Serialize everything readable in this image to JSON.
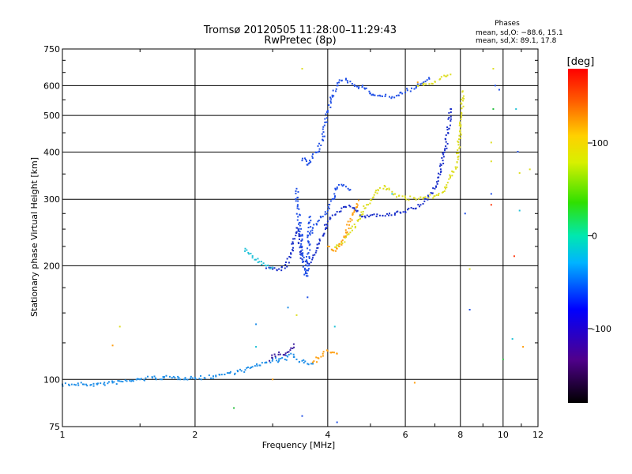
{
  "chart_data": {
    "type": "scatter",
    "title": "Tromsø 20120505 11:28:00–11:29:43",
    "subtitle": "RwPretec (8p)",
    "xlabel": "Frequency [MHz]",
    "ylabel": "Stationary phase Virtual Height [km]",
    "x_scale": "log",
    "y_scale": "log",
    "xlim": [
      1,
      12
    ],
    "ylim": [
      75,
      750
    ],
    "grid": true,
    "x_ticks": [
      1,
      2,
      4,
      6,
      8,
      10,
      12
    ],
    "x_tick_labels": [
      "1",
      "2",
      "4",
      "6",
      "8",
      "10",
      "12"
    ],
    "y_ticks": [
      75,
      100,
      200,
      300,
      400,
      500,
      600,
      750
    ],
    "y_tick_labels": [
      "75",
      "100",
      "200",
      "300",
      "400",
      "500",
      "600",
      "750"
    ],
    "stats": {
      "heading": "Phases",
      "line_o": "mean, sd,O: −88.6, 15.1",
      "line_x": "mean, sd,X:  89.1, 17.8"
    },
    "colorbar": {
      "label": "[deg]",
      "range": [
        -180,
        180
      ],
      "ticks": [
        100,
        0,
        -100
      ],
      "tick_labels": [
        "100",
        "0",
        "-100"
      ]
    },
    "colors": {
      "blue": "#1f4fe6",
      "deep_blue": "#1a2fc9",
      "light_blue": "#1e8ee8",
      "cyan": "#22c2d8",
      "yellow": "#dede22",
      "orange": "#ff9f10",
      "purple": "#3c1fa0",
      "green": "#28c040",
      "red": "#ff3a10"
    },
    "traces": [
      {
        "name": "low-band",
        "color": "light_blue",
        "x": [
          1.0,
          1.05,
          1.12,
          1.2,
          1.3,
          1.4,
          1.5,
          1.6,
          1.7,
          1.8,
          1.9,
          2.0,
          2.1,
          2.2,
          2.3,
          2.4,
          2.5,
          2.6,
          2.7,
          2.8,
          2.9,
          3.0,
          3.1,
          3.2,
          3.3,
          3.4,
          3.5,
          3.6,
          3.7
        ],
        "y": [
          97,
          97,
          97,
          97,
          98,
          99,
          100,
          101,
          101,
          101,
          101,
          101,
          101,
          102,
          103,
          104,
          105,
          106,
          108,
          109,
          111,
          113,
          112,
          113,
          117,
          113,
          112,
          110,
          110
        ]
      },
      {
        "name": "low-band-purple",
        "color": "purple",
        "x": [
          2.95,
          3.1,
          3.2,
          3.3,
          3.35
        ],
        "y": [
          112,
          118,
          116,
          121,
          124
        ]
      },
      {
        "name": "E-trace-orange",
        "color": "orange",
        "x": [
          3.7,
          3.8,
          3.9,
          4.0,
          4.1,
          4.2
        ],
        "y": [
          111,
          114,
          117,
          119,
          118,
          117
        ]
      },
      {
        "name": "F-mid-deep",
        "color": "deep_blue",
        "x": [
          2.9,
          3.0,
          3.1,
          3.2,
          3.3,
          3.4,
          3.45,
          3.5,
          3.6,
          3.7,
          3.8,
          3.9,
          4.0,
          4.1,
          4.2,
          4.3,
          4.4,
          4.5,
          4.6,
          4.8,
          5.0,
          5.5,
          6.0,
          6.5,
          7.0,
          7.3,
          7.5,
          7.6
        ],
        "y": [
          197,
          196,
          196,
          197,
          215,
          252,
          235,
          208,
          203,
          210,
          223,
          240,
          262,
          272,
          278,
          284,
          286,
          287,
          283,
          270,
          272,
          272,
          278,
          290,
          320,
          380,
          450,
          520
        ]
      },
      {
        "name": "F-mid-blue",
        "color": "blue",
        "x": [
          3.6,
          3.7,
          3.8,
          3.9,
          4.0,
          4.1,
          4.2,
          4.3,
          4.4,
          4.5
        ],
        "y": [
          238,
          252,
          262,
          270,
          280,
          300,
          320,
          328,
          324,
          318
        ]
      },
      {
        "name": "F-upper",
        "color": "blue",
        "x": [
          3.5,
          3.55,
          3.6,
          3.7,
          3.8,
          3.9,
          4.0,
          4.1,
          4.2,
          4.3,
          4.4,
          4.5,
          4.6,
          4.7,
          4.8,
          5.0,
          5.2,
          5.4,
          5.6,
          5.8,
          6.0,
          6.2,
          6.4,
          6.6,
          6.8
        ],
        "y": [
          380,
          385,
          370,
          395,
          400,
          440,
          510,
          560,
          600,
          618,
          622,
          615,
          600,
          590,
          600,
          572,
          564,
          562,
          560,
          565,
          575,
          590,
          600,
          612,
          625
        ]
      },
      {
        "name": "F-upper-yellow",
        "color": "yellow",
        "x": [
          6.4,
          6.6,
          6.8,
          7.0,
          7.2,
          7.4,
          7.6
        ],
        "y": [
          600,
          602,
          606,
          615,
          625,
          635,
          642
        ]
      },
      {
        "name": "F-x-trace",
        "color": "yellow",
        "x": [
          4.1,
          4.3,
          4.5,
          4.7,
          4.9,
          5.1,
          5.2,
          5.4,
          5.6,
          5.8,
          6.0,
          6.3,
          6.6,
          7.0,
          7.4,
          7.8,
          8.0,
          8.1
        ],
        "y": [
          220,
          230,
          245,
          265,
          290,
          308,
          318,
          324,
          314,
          306,
          302,
          302,
          303,
          306,
          320,
          365,
          450,
          580
        ]
      },
      {
        "name": "F-x-orange",
        "color": "orange",
        "x": [
          4.0,
          4.1,
          4.2,
          4.3,
          4.4,
          4.5,
          4.6,
          4.7
        ],
        "y": [
          225,
          220,
          222,
          232,
          245,
          262,
          280,
          298
        ]
      },
      {
        "name": "F-cyan",
        "color": "cyan",
        "x": [
          2.6,
          2.65,
          2.7,
          2.8,
          2.9,
          3.0
        ],
        "y": [
          222,
          215,
          210,
          205,
          200,
          198
        ]
      },
      {
        "name": "F-spread",
        "color": "blue",
        "x": [
          3.4,
          3.42,
          3.45,
          3.48,
          3.5,
          3.52,
          3.55,
          3.58,
          3.6,
          3.62,
          3.65
        ],
        "y": [
          320,
          290,
          260,
          240,
          220,
          205,
          195,
          188,
          200,
          230,
          270
        ]
      }
    ],
    "scatter": [
      {
        "x": 1.35,
        "y": 138,
        "color": "yellow"
      },
      {
        "x": 1.3,
        "y": 123,
        "color": "orange"
      },
      {
        "x": 2.45,
        "y": 84,
        "color": "green"
      },
      {
        "x": 2.75,
        "y": 140,
        "color": "light_blue"
      },
      {
        "x": 2.75,
        "y": 122,
        "color": "cyan"
      },
      {
        "x": 3.0,
        "y": 100,
        "color": "orange"
      },
      {
        "x": 3.25,
        "y": 155,
        "color": "light_blue"
      },
      {
        "x": 3.4,
        "y": 148,
        "color": "yellow"
      },
      {
        "x": 3.5,
        "y": 665,
        "color": "yellow"
      },
      {
        "x": 3.5,
        "y": 80,
        "color": "blue"
      },
      {
        "x": 3.6,
        "y": 165,
        "color": "blue"
      },
      {
        "x": 4.15,
        "y": 138,
        "color": "cyan"
      },
      {
        "x": 4.2,
        "y": 77,
        "color": "blue"
      },
      {
        "x": 5.6,
        "y": 310,
        "color": "cyan"
      },
      {
        "x": 6.3,
        "y": 98,
        "color": "orange"
      },
      {
        "x": 6.4,
        "y": 612,
        "color": "orange"
      },
      {
        "x": 8.2,
        "y": 275,
        "color": "blue"
      },
      {
        "x": 8.4,
        "y": 196,
        "color": "yellow"
      },
      {
        "x": 8.4,
        "y": 153,
        "color": "blue"
      },
      {
        "x": 9.4,
        "y": 424,
        "color": "yellow"
      },
      {
        "x": 9.4,
        "y": 378,
        "color": "yellow"
      },
      {
        "x": 9.4,
        "y": 310,
        "color": "blue"
      },
      {
        "x": 9.4,
        "y": 290,
        "color": "red"
      },
      {
        "x": 9.5,
        "y": 665,
        "color": "yellow"
      },
      {
        "x": 9.5,
        "y": 520,
        "color": "green"
      },
      {
        "x": 9.6,
        "y": 600,
        "color": "blue"
      },
      {
        "x": 9.8,
        "y": 585,
        "color": "blue"
      },
      {
        "x": 10.0,
        "y": 113,
        "color": "green"
      },
      {
        "x": 10.5,
        "y": 128,
        "color": "cyan"
      },
      {
        "x": 10.6,
        "y": 212,
        "color": "red"
      },
      {
        "x": 10.7,
        "y": 520,
        "color": "cyan"
      },
      {
        "x": 10.8,
        "y": 401,
        "color": "blue"
      },
      {
        "x": 10.9,
        "y": 352,
        "color": "yellow"
      },
      {
        "x": 10.9,
        "y": 280,
        "color": "cyan"
      },
      {
        "x": 11.1,
        "y": 122,
        "color": "orange"
      },
      {
        "x": 11.5,
        "y": 360,
        "color": "yellow"
      }
    ]
  }
}
